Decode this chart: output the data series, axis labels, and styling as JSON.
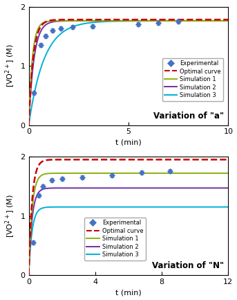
{
  "fig_width": 3.43,
  "fig_height": 4.33,
  "dpi": 100,
  "subplot1": {
    "title": "Variation of \"a\"",
    "xlabel": "t (min)",
    "ylabel": "[VO$^{2+}$] (M)",
    "xlim": [
      0,
      10
    ],
    "ylim": [
      0,
      2
    ],
    "xticks": [
      0,
      5,
      10
    ],
    "yticks": [
      0,
      1,
      2
    ],
    "exp_x": [
      0.25,
      0.6,
      0.85,
      1.2,
      1.6,
      2.2,
      3.2,
      5.5,
      6.5,
      7.5
    ],
    "exp_y": [
      0.55,
      1.35,
      1.5,
      1.6,
      1.63,
      1.65,
      1.67,
      1.7,
      1.72,
      1.75
    ],
    "optimal_params": {
      "A": 1.78,
      "k": 4.5
    },
    "sim1_params": {
      "A": 1.76,
      "k": 5.5
    },
    "sim2_params": {
      "A": 1.76,
      "k": 3.8
    },
    "sim3_params": {
      "A": 1.76,
      "k": 1.3
    },
    "colors": {
      "experimental": "#4472C4",
      "optimal": "#CC0000",
      "sim1": "#8DB010",
      "sim2": "#7030A0",
      "sim3": "#00B0D8"
    }
  },
  "subplot2": {
    "title": "Variation of \"N\"",
    "xlabel": "t (min)",
    "ylabel": "[VO$^{2+}$] (M)",
    "xlim": [
      0,
      12
    ],
    "ylim": [
      0,
      2
    ],
    "xticks": [
      0,
      4,
      8,
      12
    ],
    "yticks": [
      0,
      1,
      2
    ],
    "exp_x": [
      0.25,
      0.6,
      0.85,
      1.4,
      2.0,
      3.2,
      5.0,
      6.8,
      8.5
    ],
    "exp_y": [
      0.55,
      1.35,
      1.5,
      1.6,
      1.63,
      1.65,
      1.68,
      1.73,
      1.76
    ],
    "optimal_params": {
      "A": 1.95,
      "k": 5.0
    },
    "sim1_params": {
      "A": 1.72,
      "k": 5.0
    },
    "sim2_params": {
      "A": 1.47,
      "k": 5.0
    },
    "sim3_params": {
      "A": 1.15,
      "k": 5.0
    },
    "colors": {
      "experimental": "#4472C4",
      "optimal": "#CC0000",
      "sim1": "#8DB010",
      "sim2": "#7030A0",
      "sim3": "#00B0D8"
    }
  },
  "legend_labels": [
    "Experimental",
    "Optimal curve",
    "Simulation 1",
    "Simulation 2",
    "Simulation 3"
  ]
}
